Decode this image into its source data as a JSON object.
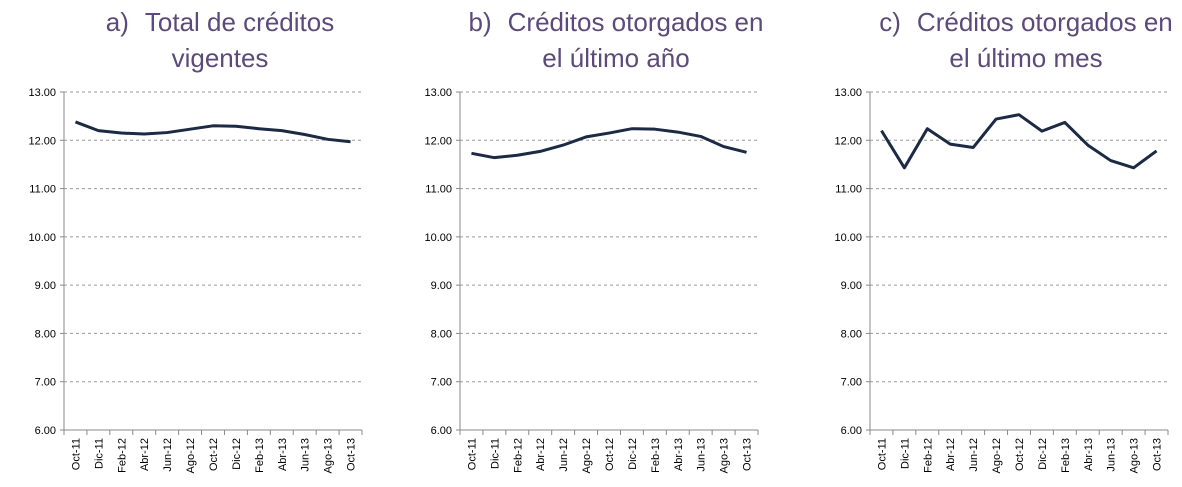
{
  "chart_data": [
    {
      "type": "line",
      "label": "a)",
      "title": "Total de créditos vigentes",
      "categories": [
        "Oct-11",
        "Dic-11",
        "Feb-12",
        "Abr-12",
        "Jun-12",
        "Ago-12",
        "Oct-12",
        "Dic-12",
        "Feb-13",
        "Abr-13",
        "Jun-13",
        "Ago-13",
        "Oct-13"
      ],
      "series": [
        {
          "color": "#1c2a44",
          "values": [
            12.38,
            12.2,
            12.15,
            12.13,
            12.16,
            12.23,
            12.3,
            12.29,
            12.24,
            12.2,
            12.12,
            12.02,
            11.97
          ]
        }
      ],
      "ylim": [
        6,
        13
      ],
      "yticks": [
        {
          "value": 6,
          "label": "6.00"
        },
        {
          "value": 7,
          "label": "7.00"
        },
        {
          "value": 8,
          "label": "8.00"
        },
        {
          "value": 9,
          "label": "9.00"
        },
        {
          "value": 10,
          "label": "10.00"
        },
        {
          "value": 11,
          "label": "11.00"
        },
        {
          "value": 12,
          "label": "12.00"
        },
        {
          "value": 13,
          "label": "13.00"
        }
      ],
      "grid": true
    },
    {
      "type": "line",
      "label": "b)",
      "title": "Créditos otorgados en el último año",
      "categories": [
        "Oct-11",
        "Dic-11",
        "Feb-12",
        "Abr-12",
        "Jun-12",
        "Ago-12",
        "Oct-12",
        "Dic-12",
        "Feb-13",
        "Abr-13",
        "Jun-13",
        "Ago-13",
        "Oct-13"
      ],
      "series": [
        {
          "color": "#1c2a44",
          "values": [
            11.73,
            11.64,
            11.69,
            11.77,
            11.9,
            12.07,
            12.15,
            12.24,
            12.23,
            12.17,
            12.08,
            11.87,
            11.75
          ]
        }
      ],
      "ylim": [
        6,
        13
      ],
      "yticks": [
        {
          "value": 6,
          "label": "6.00"
        },
        {
          "value": 7,
          "label": "7.00"
        },
        {
          "value": 8,
          "label": "8.00"
        },
        {
          "value": 9,
          "label": "9.00"
        },
        {
          "value": 10,
          "label": "10.00"
        },
        {
          "value": 11,
          "label": "11.00"
        },
        {
          "value": 12,
          "label": "12.00"
        },
        {
          "value": 13,
          "label": "13.00"
        }
      ],
      "grid": true
    },
    {
      "type": "line",
      "label": "c)",
      "title": "Créditos otorgados en el último mes",
      "categories": [
        "Oct-11",
        "Dic-11",
        "Feb-12",
        "Abr-12",
        "Jun-12",
        "Ago-12",
        "Oct-12",
        "Dic-12",
        "Feb-13",
        "Abr-13",
        "Jun-13",
        "Ago-13",
        "Oct-13"
      ],
      "series": [
        {
          "color": "#1c2a44",
          "values": [
            12.2,
            11.43,
            12.24,
            11.92,
            11.85,
            12.44,
            12.53,
            12.19,
            12.37,
            11.9,
            11.58,
            11.43,
            11.78
          ]
        }
      ],
      "ylim": [
        6,
        13
      ],
      "yticks": [
        {
          "value": 6,
          "label": "6.00"
        },
        {
          "value": 7,
          "label": "7.00"
        },
        {
          "value": 8,
          "label": "8.00"
        },
        {
          "value": 9,
          "label": "9.00"
        },
        {
          "value": 10,
          "label": "10.00"
        },
        {
          "value": 11,
          "label": "11.00"
        },
        {
          "value": 12,
          "label": "12.00"
        },
        {
          "value": 13,
          "label": "13.00"
        }
      ],
      "grid": true
    }
  ]
}
